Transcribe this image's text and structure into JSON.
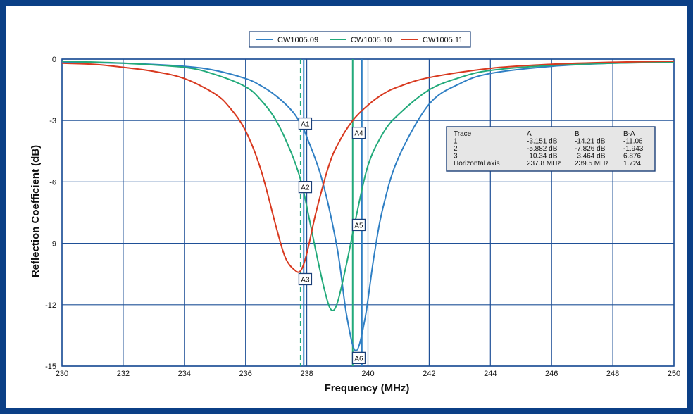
{
  "chart_data": {
    "type": "line",
    "xlabel": "Frequency (MHz)",
    "ylabel": "Reflection Coefficient (dB)",
    "xlim": [
      230,
      250
    ],
    "ylim": [
      -15,
      0
    ],
    "xticks": [
      "230",
      "232",
      "234",
      "236",
      "238",
      "240",
      "242",
      "244",
      "246",
      "248",
      "250"
    ],
    "yticks": [
      "0",
      "-3",
      "-6",
      "-9",
      "-12",
      "-15"
    ],
    "grid": true,
    "legend_position": "top-center",
    "series": [
      {
        "name": "CW1005.09",
        "color": "#2f7fc4",
        "x": [
          230,
          232,
          234,
          235,
          236,
          236.5,
          237,
          237.5,
          237.8,
          238,
          238.5,
          239,
          239.3,
          239.6,
          239.9,
          240.2,
          240.5,
          241,
          242,
          243,
          244,
          246,
          248,
          250
        ],
        "y": [
          -0.15,
          -0.2,
          -0.35,
          -0.55,
          -0.95,
          -1.3,
          -1.8,
          -2.5,
          -3.15,
          -3.8,
          -5.9,
          -9.3,
          -12.5,
          -14.25,
          -12.7,
          -9.6,
          -7.2,
          -4.8,
          -2.2,
          -1.2,
          -0.7,
          -0.35,
          -0.2,
          -0.15
        ]
      },
      {
        "name": "CW1005.10",
        "color": "#22aa7a",
        "x": [
          230,
          232,
          234,
          235,
          236,
          236.5,
          237,
          237.5,
          237.8,
          238,
          238.3,
          238.6,
          238.8,
          239,
          239.3,
          239.6,
          240,
          240.5,
          241,
          242,
          243,
          244,
          246,
          248,
          250
        ],
        "y": [
          -0.1,
          -0.2,
          -0.4,
          -0.75,
          -1.35,
          -2.0,
          -3.0,
          -4.6,
          -5.9,
          -7.2,
          -9.4,
          -11.4,
          -12.25,
          -11.9,
          -10.0,
          -7.8,
          -5.2,
          -3.6,
          -2.7,
          -1.5,
          -0.9,
          -0.55,
          -0.3,
          -0.2,
          -0.15
        ]
      },
      {
        "name": "CW1005.11",
        "color": "#d8391f",
        "x": [
          230,
          231,
          232,
          233,
          234,
          235,
          235.5,
          236,
          236.5,
          237,
          237.3,
          237.6,
          237.8,
          238,
          238.3,
          238.7,
          239,
          239.5,
          240,
          240.5,
          241,
          242,
          244,
          246,
          248,
          250
        ],
        "y": [
          -0.2,
          -0.25,
          -0.4,
          -0.6,
          -0.95,
          -1.7,
          -2.4,
          -3.5,
          -5.4,
          -8.2,
          -9.7,
          -10.3,
          -10.34,
          -9.5,
          -7.5,
          -5.3,
          -4.2,
          -3.0,
          -2.25,
          -1.7,
          -1.35,
          -0.9,
          -0.45,
          -0.25,
          -0.15,
          -0.1
        ]
      }
    ],
    "cursors": [
      {
        "label": "A",
        "x": 237.8,
        "style": "dashed",
        "color": "#22aa7a"
      },
      {
        "label": "A",
        "x": 237.9,
        "style": "solid",
        "color": "#2f7fc4"
      },
      {
        "label": "B",
        "x": 239.5,
        "style": "solid",
        "color": "#22aa7a"
      },
      {
        "label": "B",
        "x": 239.8,
        "style": "solid",
        "color": "#2f7fc4"
      }
    ],
    "markers": [
      {
        "label": "A1",
        "x": 237.95,
        "y": -3.15
      },
      {
        "label": "A2",
        "x": 237.95,
        "y": -6.25
      },
      {
        "label": "A3",
        "x": 237.95,
        "y": -10.75
      },
      {
        "label": "A4",
        "x": 239.7,
        "y": -3.6
      },
      {
        "label": "A5",
        "x": 239.7,
        "y": -8.1
      },
      {
        "label": "A6",
        "x": 239.7,
        "y": -14.6
      }
    ],
    "table": {
      "headers": [
        "Trace",
        "A",
        "B",
        "B-A"
      ],
      "rows": [
        [
          "1",
          "-3.151 dB",
          "-14.21 dB",
          "-11.06"
        ],
        [
          "2",
          "-5.882 dB",
          "-7.826 dB",
          "-1.943"
        ],
        [
          "3",
          "-10.34 dB",
          "-3.464 dB",
          "6.876"
        ],
        [
          "Horizontal axis",
          "237.8 MHz",
          "239.5 MHz",
          "1.724"
        ]
      ]
    }
  }
}
